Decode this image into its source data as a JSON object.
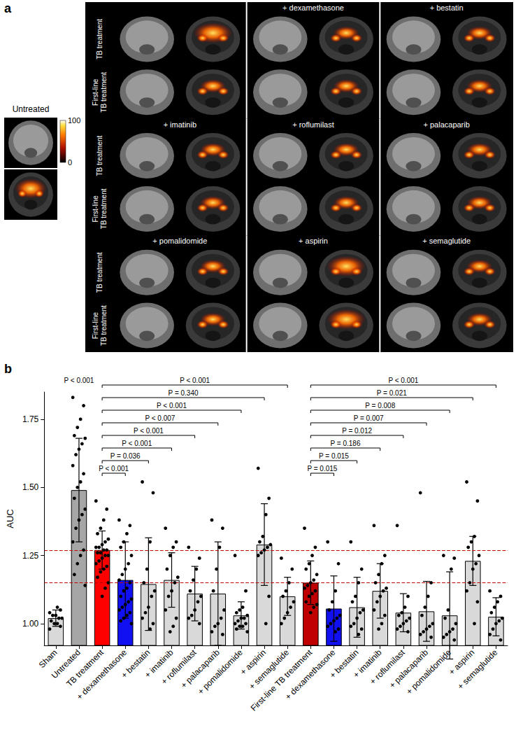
{
  "figure": {
    "panel_letters": [
      "a",
      "b"
    ]
  },
  "panel_a": {
    "untreated_label": "Untreated",
    "colorbar": {
      "range": [
        0,
        100
      ],
      "ticks": [
        0,
        100
      ]
    },
    "row_labels": [
      "TB treatment",
      "First-line TB treatment"
    ],
    "treatments": [
      "+ dexamethasone",
      "+ bestatin",
      "+ imatinib",
      "+ roflumilast",
      "+ palacaparib",
      "+ pomalidomide",
      "+ aspirin",
      "+ semaglutide"
    ]
  },
  "chart_data": {
    "type": "bar",
    "y_label": "AUC",
    "categories": [
      "Sham",
      "Untreated",
      "TB treatment",
      "+ dexamethasone",
      "+ bestatin",
      "+ imatinib",
      "+ roflumilast",
      "+ palacaparib",
      "+ pomalidomide",
      "+ aspirin",
      "+ semaglutide",
      "First-line TB treatment",
      "+ dexamethasone",
      "+ bestatin",
      "+ imatinib",
      "+ roflumilast",
      "+ palacaparib",
      "+ pomalidomide",
      "+ aspirin",
      "+ semaglutide"
    ],
    "values": [
      1.02,
      1.49,
      1.27,
      1.16,
      1.145,
      1.16,
      1.11,
      1.11,
      1.03,
      1.29,
      1.1,
      1.15,
      1.055,
      1.06,
      1.12,
      1.04,
      1.045,
      1.03,
      1.23,
      1.025
    ],
    "errors": [
      0.03,
      0.19,
      0.07,
      0.14,
      0.17,
      0.1,
      0.1,
      0.19,
      0.05,
      0.15,
      0.07,
      0.08,
      0.12,
      0.11,
      0.1,
      0.07,
      0.11,
      0.16,
      0.09,
      0.07
    ],
    "colors": [
      "#d9d9d9",
      "#a6a6a6",
      "#ff0000",
      "#1010f0",
      "#d9d9d9",
      "#d9d9d9",
      "#d9d9d9",
      "#d9d9d9",
      "#d9d9d9",
      "#d9d9d9",
      "#d9d9d9",
      "#c00000",
      "#1010f0",
      "#d9d9d9",
      "#d9d9d9",
      "#d9d9d9",
      "#d9d9d9",
      "#d9d9d9",
      "#d9d9d9",
      "#d9d9d9"
    ],
    "points": [
      [
        0.98,
        0.99,
        1.0,
        1.0,
        1.01,
        1.02,
        1.02,
        1.03,
        1.03,
        1.04,
        1.05,
        1.06
      ],
      [
        1.83,
        1.8,
        1.75,
        1.72,
        1.69,
        1.68,
        1.66,
        1.64,
        1.62,
        1.58,
        1.55,
        1.52,
        1.5,
        1.46,
        1.42,
        1.4,
        1.38,
        1.35,
        1.3,
        1.27,
        1.25,
        1.22,
        1.18,
        1.14
      ],
      [
        1.45,
        1.42,
        1.38,
        1.35,
        1.33,
        1.31,
        1.3,
        1.29,
        1.28,
        1.28,
        1.27,
        1.27,
        1.26,
        1.26,
        1.25,
        1.25,
        1.24,
        1.23,
        1.22,
        1.21,
        1.2,
        1.19,
        1.17,
        1.15,
        1.13,
        1.1
      ],
      [
        1.38,
        1.36,
        1.33,
        1.3,
        1.28,
        1.25,
        1.22,
        1.2,
        1.18,
        1.16,
        1.15,
        1.13,
        1.12,
        1.1,
        1.09,
        1.08,
        1.07,
        1.06,
        1.05,
        1.04,
        1.03,
        1.02,
        1.01,
        1.0
      ],
      [
        1.52,
        1.48,
        1.3,
        1.2,
        1.15,
        1.12,
        1.1,
        1.06,
        1.04,
        1.02,
        1.0,
        0.98
      ],
      [
        1.35,
        1.3,
        1.28,
        1.25,
        1.2,
        1.17,
        1.15,
        1.12,
        1.1,
        1.05,
        1.02,
        0.99,
        0.97
      ],
      [
        1.28,
        1.24,
        1.2,
        1.16,
        1.12,
        1.1,
        1.08,
        1.05,
        1.03,
        1.02,
        1.0
      ],
      [
        1.38,
        1.35,
        1.28,
        1.2,
        1.12,
        1.05,
        1.02,
        1.0,
        0.99,
        0.97,
        0.96
      ],
      [
        1.25,
        1.12,
        1.06,
        1.05,
        1.04,
        1.03,
        1.02,
        1.02,
        1.01,
        1.0,
        1.0,
        0.99,
        0.99,
        0.98,
        0.97
      ],
      [
        1.57,
        1.46,
        1.4,
        1.32,
        1.3,
        1.29,
        1.28,
        1.27,
        1.26,
        1.25,
        1.1,
        1.0
      ],
      [
        1.24,
        1.2,
        1.15,
        1.12,
        1.1,
        1.08,
        1.06,
        1.04,
        1.02,
        1.0
      ],
      [
        1.35,
        1.28,
        1.25,
        1.22,
        1.2,
        1.18,
        1.16,
        1.15,
        1.14,
        1.13,
        1.12,
        1.11,
        1.1,
        1.08,
        1.07,
        1.06,
        1.04
      ],
      [
        1.3,
        1.22,
        1.12,
        1.08,
        1.05,
        1.03,
        1.02,
        1.01,
        1.0,
        0.99,
        0.98,
        0.97
      ],
      [
        1.3,
        1.2,
        1.15,
        1.1,
        1.08,
        1.05,
        1.04,
        1.02,
        1.0,
        0.99,
        0.98,
        0.96
      ],
      [
        1.36,
        1.25,
        1.22,
        1.18,
        1.15,
        1.13,
        1.12,
        1.1,
        1.08,
        1.05,
        1.03,
        1.0,
        0.98
      ],
      [
        1.36,
        1.1,
        1.06,
        1.04,
        1.03,
        1.02,
        1.01,
        1.0,
        0.99,
        0.98,
        0.97
      ],
      [
        1.48,
        1.15,
        1.1,
        1.06,
        1.03,
        1.0,
        0.99,
        0.98,
        0.97,
        0.96,
        0.95
      ],
      [
        1.25,
        1.24,
        1.2,
        1.05,
        1.02,
        1.0,
        0.98,
        0.97,
        0.96,
        0.95,
        0.94
      ],
      [
        1.52,
        1.45,
        1.32,
        1.3,
        1.28,
        1.25,
        1.22,
        1.2,
        1.15,
        1.12,
        1.08,
        1.0
      ],
      [
        1.12,
        1.1,
        1.08,
        1.06,
        1.04,
        1.02,
        1.01,
        1.0,
        0.98,
        0.96,
        0.94
      ]
    ],
    "ylim": [
      0.92,
      1.85
    ],
    "yticks": [
      {
        "value": 1,
        "label": "1.00"
      },
      {
        "value": 1.25,
        "label": "1.25"
      },
      {
        "value": 1.5,
        "label": "1.50"
      },
      {
        "value": 1.75,
        "label": "1.75"
      }
    ],
    "reference_lines": [
      1.27,
      1.15
    ],
    "annotations": [
      {
        "category": "Untreated",
        "label": "P < 0.001"
      }
    ],
    "comparisons": [
      {
        "from": 2,
        "to": 3,
        "label": "P < 0.001"
      },
      {
        "from": 2,
        "to": 4,
        "label": "P = 0.036"
      },
      {
        "from": 2,
        "to": 5,
        "label": "P < 0.001"
      },
      {
        "from": 2,
        "to": 6,
        "label": "P < 0.001"
      },
      {
        "from": 2,
        "to": 7,
        "label": "P < 0.007"
      },
      {
        "from": 2,
        "to": 8,
        "label": "P < 0.001"
      },
      {
        "from": 2,
        "to": 9,
        "label": "P = 0.340"
      },
      {
        "from": 2,
        "to": 10,
        "label": "P < 0.001"
      },
      {
        "from": 11,
        "to": 12,
        "label": "P = 0.015"
      },
      {
        "from": 11,
        "to": 13,
        "label": "P = 0.015"
      },
      {
        "from": 11,
        "to": 14,
        "label": "P = 0.186"
      },
      {
        "from": 11,
        "to": 15,
        "label": "P = 0.012"
      },
      {
        "from": 11,
        "to": 16,
        "label": "P = 0.007"
      },
      {
        "from": 11,
        "to": 17,
        "label": "P = 0.008"
      },
      {
        "from": 11,
        "to": 18,
        "label": "P = 0.021"
      },
      {
        "from": 11,
        "to": 19,
        "label": "P < 0.001"
      }
    ],
    "grid": false
  }
}
